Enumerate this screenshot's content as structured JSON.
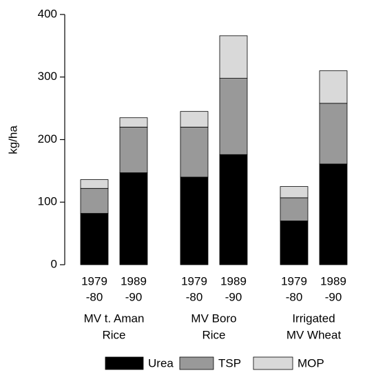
{
  "chart_data": {
    "type": "stacked_bar",
    "ylabel": "kg/ha",
    "categories": [
      [
        "1979",
        "-80"
      ],
      [
        "1989",
        "-90"
      ],
      [
        "1979",
        "-80"
      ],
      [
        "1989",
        "-90"
      ],
      [
        "1979",
        "-80"
      ],
      [
        "1989",
        "-90"
      ]
    ],
    "groups": [
      [
        "MV t. Aman",
        "Rice"
      ],
      [
        "MV Boro",
        "Rice"
      ],
      [
        "Irrigated",
        "MV Wheat"
      ]
    ],
    "series": [
      {
        "name": "Urea",
        "color": "#000000",
        "values": [
          82,
          147,
          140,
          176,
          70,
          161
        ]
      },
      {
        "name": "TSP",
        "color": "#999999",
        "values": [
          40,
          73,
          80,
          122,
          37,
          97
        ]
      },
      {
        "name": "MOP",
        "color": "#d9d9d9",
        "values": [
          14,
          15,
          25,
          68,
          18,
          52
        ]
      }
    ],
    "ylim": [
      0,
      400
    ],
    "yticks": [
      0,
      100,
      200,
      300,
      400
    ]
  }
}
